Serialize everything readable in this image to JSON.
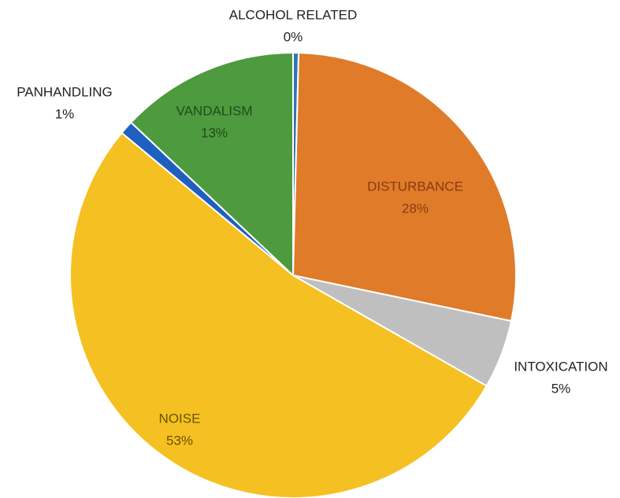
{
  "chart_data": {
    "type": "pie",
    "categories": [
      "ALCOHOL RELATED",
      "DISTURBANCE",
      "INTOXICATION",
      "NOISE",
      "PANHANDLING",
      "VANDALISM"
    ],
    "values": [
      0.4,
      28,
      5,
      53,
      1,
      13
    ],
    "value_labels": [
      "0%",
      "28%",
      "5%",
      "53%",
      "1%",
      "13%"
    ],
    "colors": [
      "#2e75b6",
      "#e07b2a",
      "#bfbfbf",
      "#f5c021",
      "#1f5fbf",
      "#4e9a3e"
    ]
  }
}
